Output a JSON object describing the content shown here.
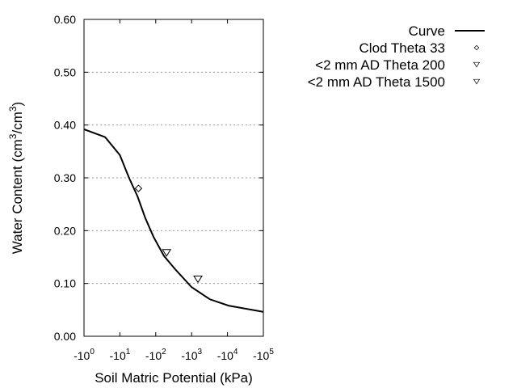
{
  "chart_data": {
    "type": "line",
    "xlabel": "Soil Matric Potential (kPa)",
    "ylabel_parts": {
      "prefix": "Water Content (cm",
      "sup1": "3",
      "mid": "/cm",
      "sup2": "3",
      "suffix": ")"
    },
    "x_scale": "log (negative potentials)",
    "xlim": [
      -1,
      -100000
    ],
    "ylim": [
      0,
      0.6
    ],
    "x_ticks": [
      {
        "base": "-10",
        "exp": "0"
      },
      {
        "base": "-10",
        "exp": "1"
      },
      {
        "base": "-10",
        "exp": "2"
      },
      {
        "base": "-10",
        "exp": "3"
      },
      {
        "base": "-10",
        "exp": "4"
      },
      {
        "base": "-10",
        "exp": "5"
      }
    ],
    "y_ticks": [
      "0.00",
      "0.10",
      "0.20",
      "0.30",
      "0.40",
      "0.50",
      "0.60"
    ],
    "grid": "horizontal dotted",
    "legend_position": "right",
    "series": [
      {
        "name": "Curve",
        "kind": "line",
        "color": "#000000",
        "x": [
          -1,
          -3.9,
          -10,
          -18,
          -31,
          -51,
          -87,
          -170,
          -347,
          -1000,
          -3236,
          -10715,
          -85114,
          -100000
        ],
        "y": [
          0.392,
          0.377,
          0.343,
          0.3,
          0.265,
          0.224,
          0.188,
          0.152,
          0.127,
          0.093,
          0.07,
          0.058,
          0.047,
          0.046
        ]
      },
      {
        "name": "Clod Theta 33",
        "kind": "marker",
        "marker": "diamond",
        "x": [
          -33
        ],
        "y": [
          0.28
        ]
      },
      {
        "name": "<2 mm AD Theta 200",
        "kind": "marker",
        "marker": "triangle-down",
        "x": [
          -200
        ],
        "y": [
          0.158
        ]
      },
      {
        "name": "<2 mm AD Theta 1500",
        "kind": "marker",
        "marker": "triangle-down",
        "x": [
          -1500
        ],
        "y": [
          0.108
        ]
      }
    ]
  }
}
